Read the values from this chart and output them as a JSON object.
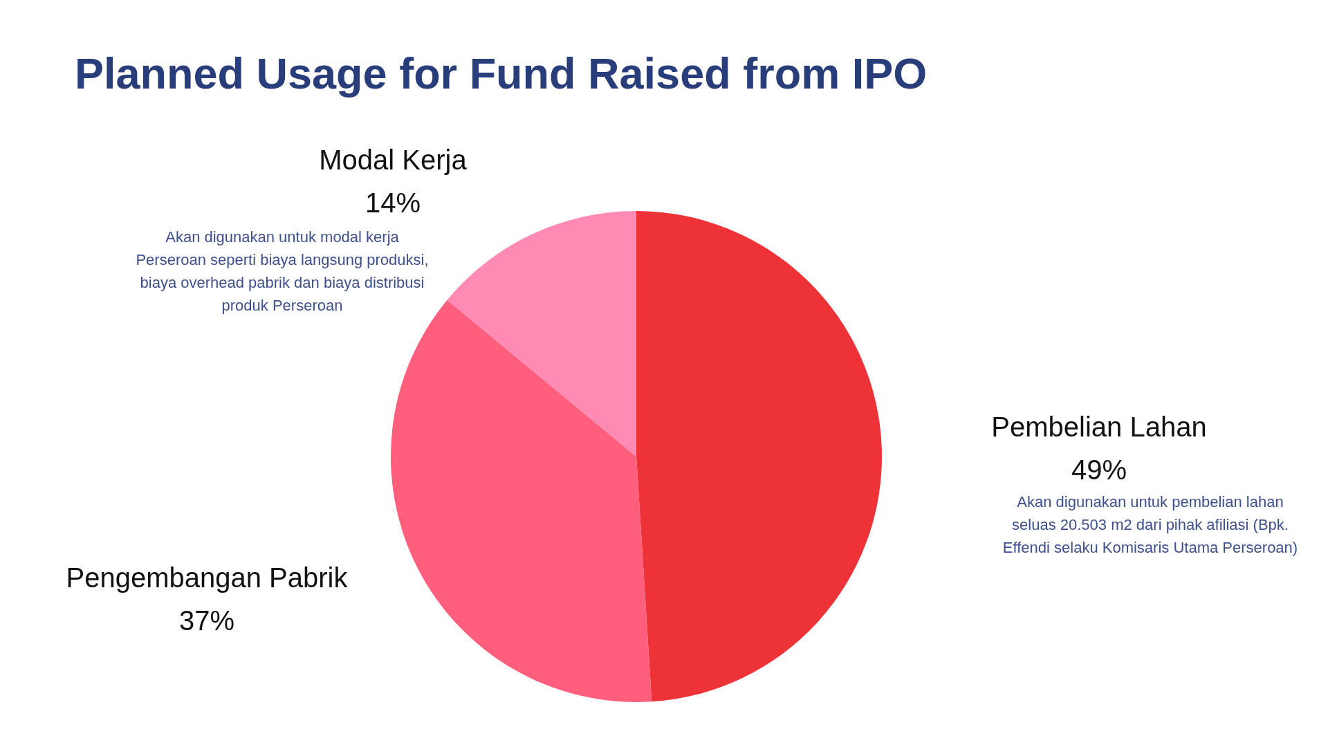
{
  "chart_data": {
    "type": "pie",
    "title": "Planned Usage for Fund Raised from IPO",
    "categories": [
      "Pembelian Lahan",
      "Pengembangan Pabrik",
      "Modal Kerja"
    ],
    "values": [
      49,
      37,
      14
    ],
    "value_labels": [
      "49%",
      "37%",
      "14%"
    ],
    "colors": [
      "#ee3338",
      "#ff5e7c",
      "#ff8bb5"
    ],
    "annotations": [
      "Akan digunakan untuk modal kerja Perseroan seperti biaya langsung produksi, biaya overhead pabrik dan biaya distribusi produk Perseroan",
      "Akan digunakan untuk pembelian lahan seluas 20.503 m2 dari pihak afiliasi (Bpk. Effendi selaku Komisaris Utama Perseroan)"
    ]
  }
}
